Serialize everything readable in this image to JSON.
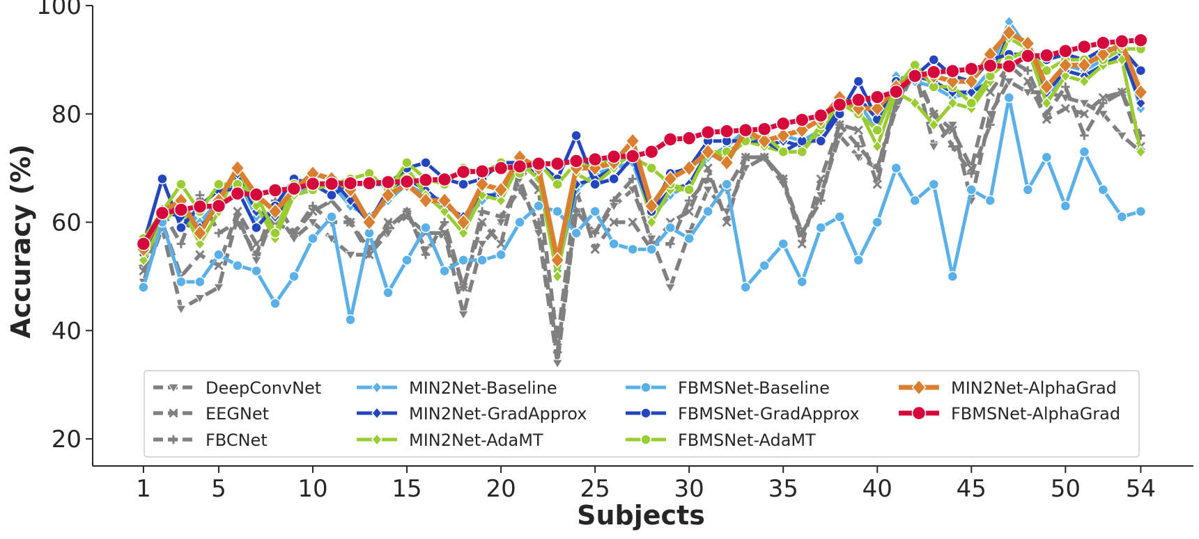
{
  "chart_data": {
    "type": "line",
    "xlabel": "Subjects",
    "ylabel": "Accuracy (%)",
    "xlim": [
      -1.7,
      56.8
    ],
    "ylim": [
      15,
      100
    ],
    "x_ticks": [
      1,
      5,
      10,
      15,
      20,
      25,
      30,
      35,
      40,
      45,
      50,
      54
    ],
    "x_tick_labels": [
      "1",
      "5",
      "10",
      "15",
      "20",
      "25",
      "30",
      "35",
      "40",
      "45",
      "50",
      "54"
    ],
    "y_ticks": [
      20,
      40,
      60,
      80,
      100
    ],
    "y_tick_labels": [
      "20",
      "40",
      "60",
      "80",
      "100"
    ],
    "grid": false,
    "legend_position": "bottom",
    "legend_columns": 4,
    "x": [
      1,
      2,
      3,
      4,
      5,
      6,
      7,
      8,
      9,
      10,
      11,
      12,
      13,
      14,
      15,
      16,
      17,
      18,
      19,
      20,
      21,
      22,
      23,
      24,
      25,
      26,
      27,
      28,
      29,
      30,
      31,
      32,
      33,
      34,
      35,
      36,
      37,
      38,
      39,
      40,
      41,
      42,
      43,
      44,
      45,
      46,
      47,
      48,
      49,
      50,
      51,
      52,
      53,
      54
    ],
    "series": [
      {
        "name": "DeepConvNet",
        "color": "#808080",
        "dash": "dashed",
        "marker": "tri_down",
        "values": [
          49,
          59,
          44,
          46,
          48,
          61,
          53,
          62,
          57,
          60,
          57,
          54,
          54,
          58,
          62,
          55,
          58,
          43,
          56,
          60,
          68,
          58,
          34,
          62,
          58,
          63,
          66,
          57,
          48,
          58,
          66,
          62,
          70,
          72,
          67,
          58,
          65,
          76,
          72,
          70,
          81,
          88,
          74,
          78,
          64,
          80,
          86,
          84,
          84,
          83,
          82,
          80,
          76,
          73
        ]
      },
      {
        "name": "EEGNet",
        "color": "#808080",
        "dash": "dashed",
        "marker": "x",
        "values": [
          51,
          60,
          50,
          54,
          52,
          62,
          56,
          60,
          58,
          62,
          64,
          60,
          54,
          60,
          61,
          58,
          58,
          48,
          60,
          56,
          70,
          66,
          38,
          66,
          55,
          60,
          60,
          55,
          60,
          62,
          70,
          60,
          72,
          72,
          68,
          56,
          68,
          78,
          77,
          67,
          83,
          87,
          80,
          77,
          70,
          84,
          89,
          86,
          79,
          81,
          80,
          83,
          84,
          74
        ]
      },
      {
        "name": "FBCNet",
        "color": "#808080",
        "dash": "dashed",
        "marker": "plus",
        "values": [
          52,
          62,
          56,
          65,
          58,
          60,
          54,
          64,
          58,
          63,
          60,
          60,
          55,
          59,
          62,
          54,
          60,
          48,
          62,
          61,
          66,
          60,
          36,
          62,
          58,
          64,
          68,
          56,
          56,
          64,
          68,
          66,
          72,
          72,
          68,
          58,
          64,
          78,
          74,
          70,
          82,
          88,
          80,
          74,
          69,
          78,
          90,
          88,
          80,
          85,
          76,
          82,
          84,
          76
        ]
      },
      {
        "name": "MIN2Net-Baseline",
        "color": "#5ab0e8",
        "dash": "solid",
        "marker": "diamond",
        "values": [
          55,
          61,
          63,
          60,
          64,
          68,
          61,
          61,
          66,
          66,
          67,
          63,
          61,
          64,
          67,
          65,
          64,
          60,
          64,
          66,
          71,
          68,
          51,
          66,
          69,
          70,
          71,
          61,
          65,
          67,
          72,
          74,
          77,
          75,
          76,
          75,
          77,
          82,
          82,
          77,
          87,
          86,
          85,
          83,
          84,
          88,
          97,
          92,
          82,
          89,
          88,
          90,
          92,
          81
        ]
      },
      {
        "name": "MIN2Net-GradApprox",
        "color": "#2345c0",
        "dash": "solid",
        "marker": "diamond",
        "values": [
          54,
          62,
          61,
          59,
          63,
          69,
          62,
          61,
          65,
          66,
          68,
          64,
          60,
          66,
          68,
          66,
          63,
          61,
          65,
          65,
          71,
          69,
          52,
          67,
          68,
          70,
          73,
          62,
          66,
          67,
          73,
          72,
          76,
          74,
          75,
          74,
          76,
          81,
          83,
          79,
          86,
          87,
          86,
          84,
          84,
          86,
          95,
          93,
          84,
          88,
          87,
          89,
          91,
          82
        ]
      },
      {
        "name": "MIN2Net-AdaMT",
        "color": "#9acd32",
        "dash": "solid",
        "marker": "diamond",
        "values": [
          53,
          60,
          63,
          56,
          62,
          70,
          63,
          57,
          65,
          66,
          68,
          66,
          60,
          65,
          70,
          65,
          62,
          58,
          65,
          64,
          71,
          68,
          50,
          69,
          67,
          70,
          73,
          60,
          66,
          66,
          73,
          72,
          75,
          74,
          73,
          73,
          77,
          82,
          81,
          74,
          84,
          82,
          78,
          82,
          81,
          86,
          94,
          92,
          82,
          87,
          86,
          89,
          90,
          73
        ]
      },
      {
        "name": "FBMSNet-Baseline",
        "color": "#5ab0e8",
        "dash": "solid",
        "marker": "circle",
        "values": [
          48,
          60,
          49,
          49,
          54,
          52,
          51,
          45,
          50,
          57,
          61,
          42,
          58,
          47,
          53,
          59,
          51,
          53,
          53,
          54,
          60,
          63,
          62,
          58,
          62,
          56,
          55,
          55,
          59,
          57,
          62,
          67,
          48,
          52,
          56,
          49,
          59,
          61,
          53,
          60,
          70,
          64,
          67,
          50,
          66,
          64,
          83,
          66,
          72,
          63,
          73,
          66,
          61,
          62
        ]
      },
      {
        "name": "FBMSNet-GradApprox",
        "color": "#2345c0",
        "dash": "solid",
        "marker": "circle",
        "values": [
          56,
          68,
          59,
          63,
          66,
          66,
          59,
          63,
          68,
          67,
          65,
          67,
          67,
          67,
          70,
          71,
          68,
          67,
          68,
          71,
          71,
          71,
          68,
          76,
          67,
          68,
          72,
          62,
          69,
          70,
          75,
          75,
          75,
          75,
          73,
          75,
          75,
          80,
          86,
          79,
          86,
          87,
          90,
          87,
          86,
          90,
          91,
          91,
          90,
          91,
          90,
          92,
          92,
          88
        ]
      },
      {
        "name": "FBMSNet-AdaMT",
        "color": "#9acd32",
        "dash": "solid",
        "marker": "circle",
        "values": [
          57,
          62,
          67,
          62,
          67,
          67,
          65,
          58,
          67,
          66,
          67,
          68,
          69,
          66,
          71,
          68,
          67,
          70,
          69,
          71,
          69,
          71,
          67,
          71,
          70,
          72,
          72,
          70,
          67,
          66,
          73,
          73,
          75,
          76,
          73,
          73,
          78,
          82,
          80,
          77,
          85,
          89,
          85,
          85,
          82,
          87,
          90,
          92,
          88,
          90,
          90,
          90,
          92,
          92
        ]
      },
      {
        "name": "MIN2Net-AlphaGrad",
        "color": "#d97f2e",
        "dash": "solid",
        "marker": "diamond",
        "values": [
          55,
          62,
          64,
          58,
          64,
          70,
          65,
          62,
          66,
          69,
          68,
          66,
          60,
          65,
          67,
          64,
          64,
          60,
          67,
          66,
          72,
          70,
          53,
          70,
          70,
          71,
          75,
          63,
          68,
          70,
          73,
          71,
          77,
          75,
          76,
          77,
          79,
          83,
          81,
          81,
          85,
          87,
          87,
          86,
          86,
          91,
          95,
          93,
          85,
          89,
          89,
          91,
          93,
          84
        ]
      },
      {
        "name": "FBMSNet-AlphaGrad",
        "color": "#d6073a",
        "dash": "solid",
        "marker": "circle",
        "values": [
          56,
          61.7,
          62.3,
          62.9,
          63,
          65.3,
          65.1,
          65.9,
          66.2,
          67.1,
          67.1,
          67.2,
          67.2,
          67.4,
          67.5,
          67.8,
          67.9,
          69.3,
          69.4,
          70,
          70.3,
          70.8,
          70.8,
          71.3,
          71.6,
          72.1,
          72.2,
          73,
          75.3,
          75.5,
          76.6,
          76.8,
          77,
          77.2,
          78.2,
          78.9,
          79.7,
          81.7,
          82.6,
          83.1,
          84.1,
          87,
          87.7,
          87.9,
          88.3,
          88.9,
          88.8,
          90.7,
          90.8,
          91.6,
          92.4,
          93.1,
          93.4,
          93.6
        ]
      }
    ]
  }
}
